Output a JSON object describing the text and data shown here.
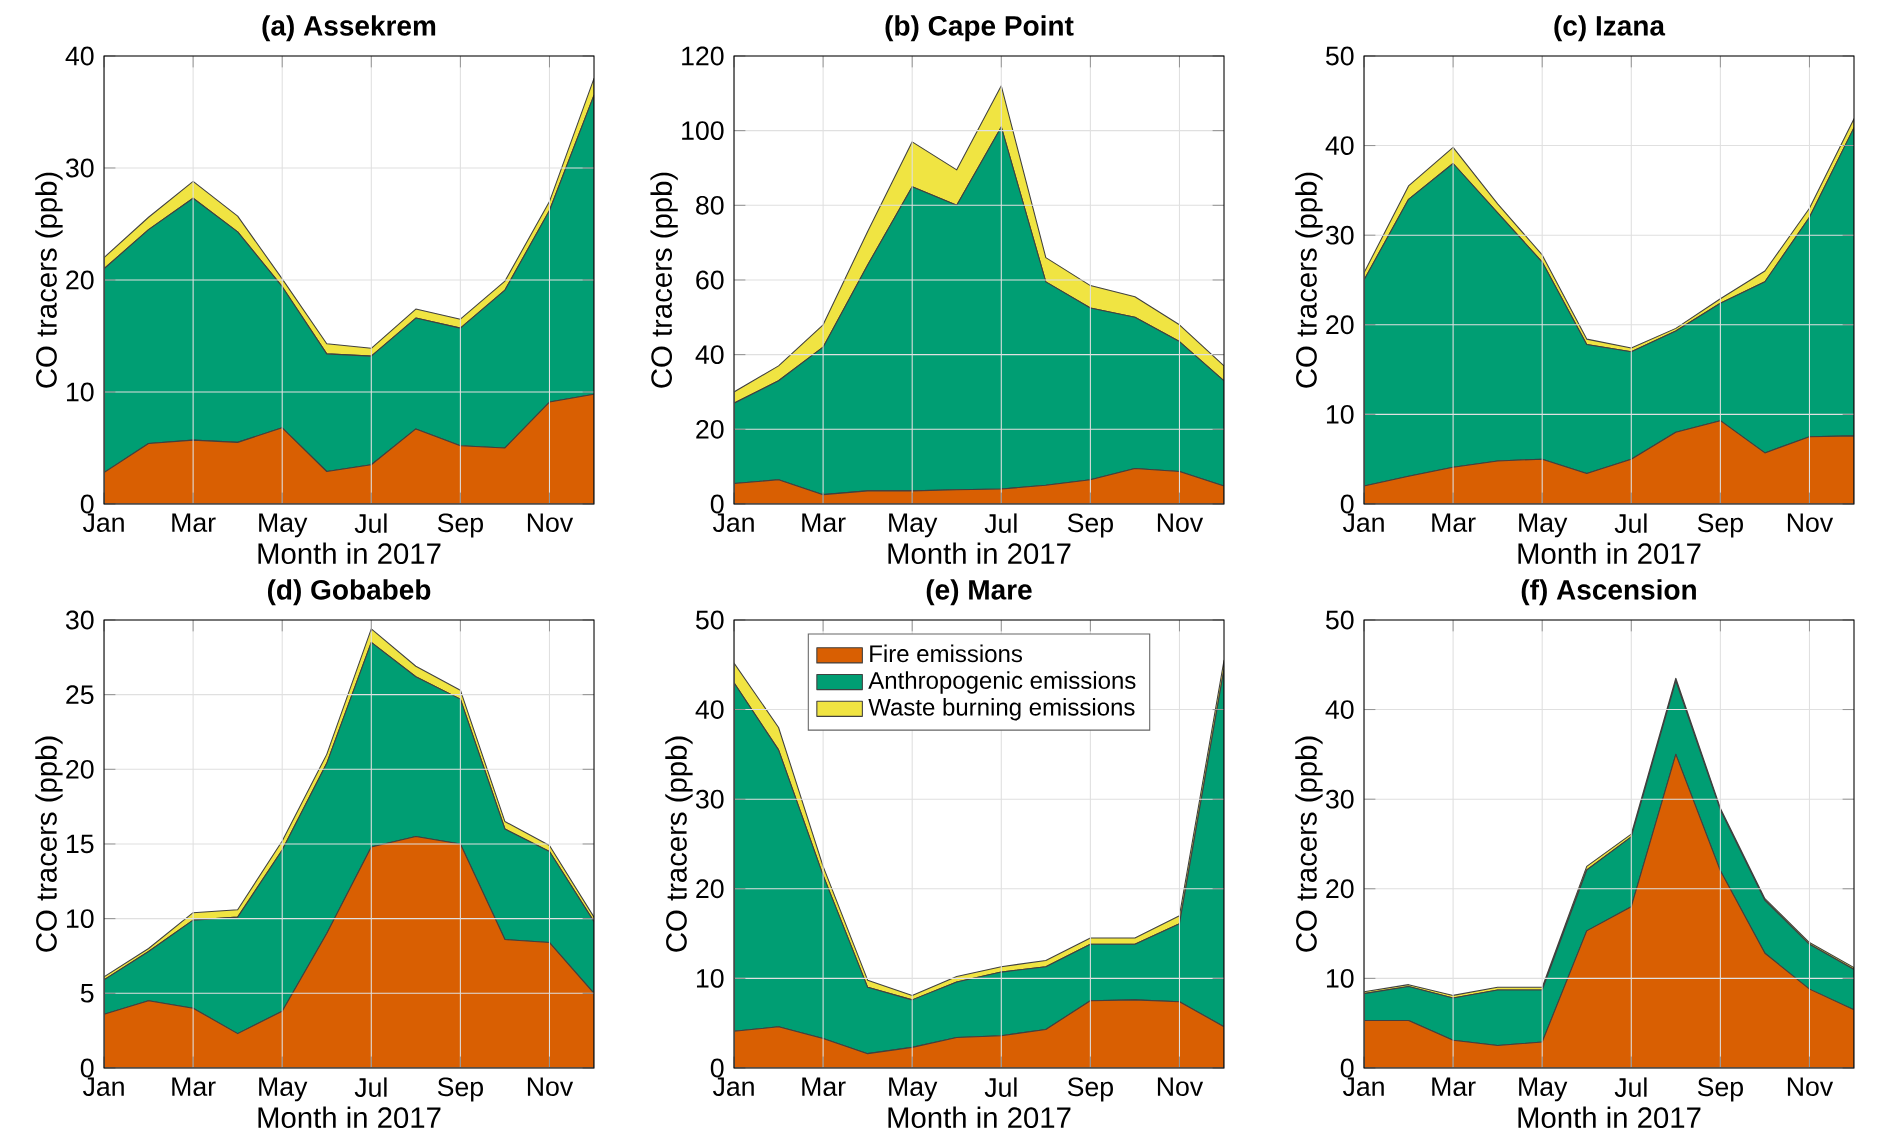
{
  "chart_data": [
    {
      "type": "area",
      "stacked": true,
      "title": "(a) Assekrem",
      "xlabel": "Month in 2017",
      "ylabel": "CO tracers (ppb)",
      "categories": [
        "Jan",
        null,
        "Mar",
        null,
        "May",
        null,
        "Jul",
        null,
        "Sep",
        null,
        "Nov",
        null
      ],
      "ylim": [
        0,
        40
      ],
      "yticks": [
        0,
        10,
        20,
        30,
        40
      ],
      "grid": true,
      "legend": false,
      "series": [
        {
          "color": "#d95f02",
          "values": [
            2.8,
            5.4,
            5.7,
            5.5,
            6.8,
            2.9,
            3.5,
            6.7,
            5.2,
            5.0,
            9.1,
            9.8
          ]
        },
        {
          "color": "#009e73",
          "values": [
            18.2,
            19.1,
            21.6,
            18.8,
            12.6,
            10.5,
            9.7,
            9.9,
            10.5,
            14.1,
            17.1,
            26.7
          ]
        },
        {
          "color": "#f0e442",
          "values": [
            1.0,
            1.1,
            1.5,
            1.4,
            0.7,
            0.9,
            0.7,
            0.8,
            0.8,
            0.8,
            0.8,
            1.5
          ]
        }
      ]
    },
    {
      "type": "area",
      "stacked": true,
      "title": "(b) Cape Point",
      "xlabel": "Month in 2017",
      "ylabel": "CO tracers (ppb)",
      "categories": [
        "Jan",
        null,
        "Mar",
        null,
        "May",
        null,
        "Jul",
        null,
        "Sep",
        null,
        "Nov",
        null
      ],
      "ylim": [
        0,
        120
      ],
      "yticks": [
        0,
        20,
        40,
        60,
        80,
        100,
        120
      ],
      "grid": true,
      "legend": false,
      "series": [
        {
          "color": "#d95f02",
          "values": [
            5.5,
            6.5,
            2.5,
            3.5,
            3.5,
            3.8,
            4,
            5,
            6.5,
            9.5,
            8.7,
            4.8
          ]
        },
        {
          "color": "#009e73",
          "values": [
            21.5,
            26.5,
            39.5,
            60.5,
            81.5,
            76.2,
            97,
            54.5,
            46,
            40.5,
            34.8,
            28.2
          ]
        },
        {
          "color": "#f0e442",
          "values": [
            3,
            4,
            6,
            9,
            12,
            9.5,
            11,
            6.5,
            6,
            5.5,
            4.5,
            4
          ]
        }
      ]
    },
    {
      "type": "area",
      "stacked": true,
      "title": "(c) Izana",
      "xlabel": "Month in 2017",
      "ylabel": "CO tracers (ppb)",
      "categories": [
        "Jan",
        null,
        "Mar",
        null,
        "May",
        null,
        "Jul",
        null,
        "Sep",
        null,
        "Nov",
        null
      ],
      "ylim": [
        0,
        50
      ],
      "yticks": [
        0,
        10,
        20,
        30,
        40,
        50
      ],
      "grid": true,
      "legend": false,
      "series": [
        {
          "color": "#d95f02",
          "values": [
            2,
            3.1,
            4.1,
            4.8,
            5,
            3.4,
            5,
            8,
            9.3,
            5.7,
            7.5,
            7.6
          ]
        },
        {
          "color": "#009e73",
          "values": [
            23,
            30.9,
            33.9,
            27.7,
            22,
            14.4,
            12,
            11.3,
            13.1,
            19.1,
            24.5,
            34.4
          ]
        },
        {
          "color": "#f0e442",
          "values": [
            0.8,
            1.5,
            1.8,
            1,
            0.8,
            0.6,
            0.4,
            0.3,
            0.5,
            1.2,
            1,
            1
          ]
        }
      ]
    },
    {
      "type": "area",
      "stacked": true,
      "title": "(d) Gobabeb",
      "xlabel": "Month in 2017",
      "ylabel": "CO tracers (ppb)",
      "categories": [
        "Jan",
        null,
        "Mar",
        null,
        "May",
        null,
        "Jul",
        null,
        "Sep",
        null,
        "Nov",
        null
      ],
      "ylim": [
        0,
        30
      ],
      "yticks": [
        0,
        5,
        10,
        15,
        20,
        25,
        30
      ],
      "grid": true,
      "legend": false,
      "series": [
        {
          "color": "#d95f02",
          "values": [
            3.6,
            4.5,
            4,
            2.3,
            3.8,
            9,
            14.8,
            15.5,
            15,
            8.6,
            8.4,
            5
          ]
        },
        {
          "color": "#009e73",
          "values": [
            2.3,
            3.3,
            5.9,
            7.8,
            10.8,
            11.4,
            13.7,
            10.7,
            9.7,
            7.4,
            6.1,
            4.8
          ]
        },
        {
          "color": "#f0e442",
          "values": [
            0.2,
            0.2,
            0.5,
            0.5,
            0.6,
            0.6,
            0.9,
            0.7,
            0.6,
            0.5,
            0.4,
            0.3
          ]
        }
      ]
    },
    {
      "type": "area",
      "stacked": true,
      "title": "(e) Mare",
      "xlabel": "Month in 2017",
      "ylabel": "CO tracers (ppb)",
      "categories": [
        "Jan",
        null,
        "Mar",
        null,
        "May",
        null,
        "Jul",
        null,
        "Sep",
        null,
        "Nov",
        null
      ],
      "ylim": [
        0,
        50
      ],
      "yticks": [
        0,
        10,
        20,
        30,
        40,
        50
      ],
      "grid": true,
      "legend": "top",
      "series": [
        {
          "name": "Fire emissions",
          "color": "#d95f02",
          "values": [
            4.1,
            4.6,
            3.3,
            1.6,
            2.3,
            3.4,
            3.6,
            4.3,
            7.5,
            7.6,
            7.4,
            4.6
          ]
        },
        {
          "name": "Anthropogenic emissions",
          "color": "#009e73",
          "values": [
            38.9,
            30.9,
            18.2,
            7.4,
            5.3,
            6.2,
            7.1,
            7,
            6.3,
            6.2,
            8.7,
            39.9
          ]
        },
        {
          "name": "Waste burning emissions",
          "color": "#f0e442",
          "values": [
            2.2,
            2.5,
            1,
            0.8,
            0.5,
            0.6,
            0.6,
            0.7,
            0.7,
            0.7,
            0.9,
            1
          ]
        }
      ]
    },
    {
      "type": "area",
      "stacked": true,
      "title": "(f) Ascension",
      "xlabel": "Month in 2017",
      "ylabel": "CO tracers (ppb)",
      "categories": [
        "Jan",
        null,
        "Mar",
        null,
        "May",
        null,
        "Jul",
        null,
        "Sep",
        null,
        "Nov",
        null
      ],
      "ylim": [
        0,
        50
      ],
      "yticks": [
        0,
        10,
        20,
        30,
        40,
        50
      ],
      "grid": true,
      "legend": false,
      "series": [
        {
          "color": "#d95f02",
          "values": [
            5.3,
            5.3,
            3.1,
            2.5,
            2.9,
            15.3,
            18,
            35,
            22,
            12.8,
            8.8,
            6.5
          ]
        },
        {
          "color": "#009e73",
          "values": [
            3,
            3.8,
            4.7,
            6.2,
            5.8,
            6.8,
            7.8,
            8.2,
            6.8,
            5.9,
            5,
            4.5
          ]
        },
        {
          "color": "#f0e442",
          "values": [
            0.2,
            0.2,
            0.3,
            0.3,
            0.3,
            0.4,
            0.3,
            0.3,
            0.2,
            0.2,
            0.2,
            0.2
          ]
        }
      ]
    }
  ]
}
